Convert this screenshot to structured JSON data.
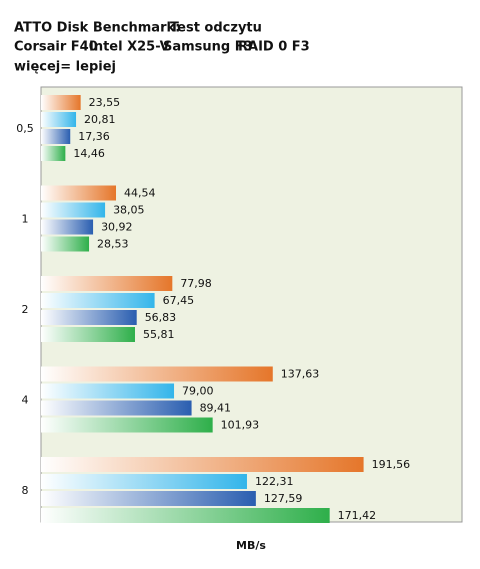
{
  "chart_data": {
    "type": "hbar",
    "title": "ATTO Disk Benchmark:",
    "subtitle": "Test odczytu",
    "note": "więcej= lepiej",
    "x_label": "MB/s",
    "categories": [
      "0,5",
      "1",
      "2",
      "4",
      "8"
    ],
    "xlim": [
      0,
      250
    ],
    "series": [
      {
        "name": "Corsair F40",
        "color": "#2eaf4a",
        "values": [
          14.46,
          28.53,
          55.81,
          101.93,
          171.42
        ],
        "value_labels": [
          "14,46",
          "28,53",
          "55,81",
          "101,93",
          "171,42"
        ]
      },
      {
        "name": "Intel X25-V",
        "color": "#e5762a",
        "values": [
          23.55,
          44.54,
          77.98,
          137.63,
          191.56
        ],
        "value_labels": [
          "23,55",
          "44,54",
          "77,98",
          "137,63",
          "191,56"
        ]
      },
      {
        "name": "Samsung F3",
        "color": "#33b5ea",
        "values": [
          20.81,
          38.05,
          67.45,
          79.0,
          122.31
        ],
        "value_labels": [
          "20,81",
          "38,05",
          "67,45",
          "79,00",
          "122,31"
        ]
      },
      {
        "name": "RAID 0 F3",
        "color": "#2a5eb0",
        "values": [
          17.36,
          30.92,
          56.83,
          89.41,
          127.59
        ],
        "value_labels": [
          "17,36",
          "30,92",
          "56,83",
          "89,41",
          "127,59"
        ]
      }
    ]
  }
}
